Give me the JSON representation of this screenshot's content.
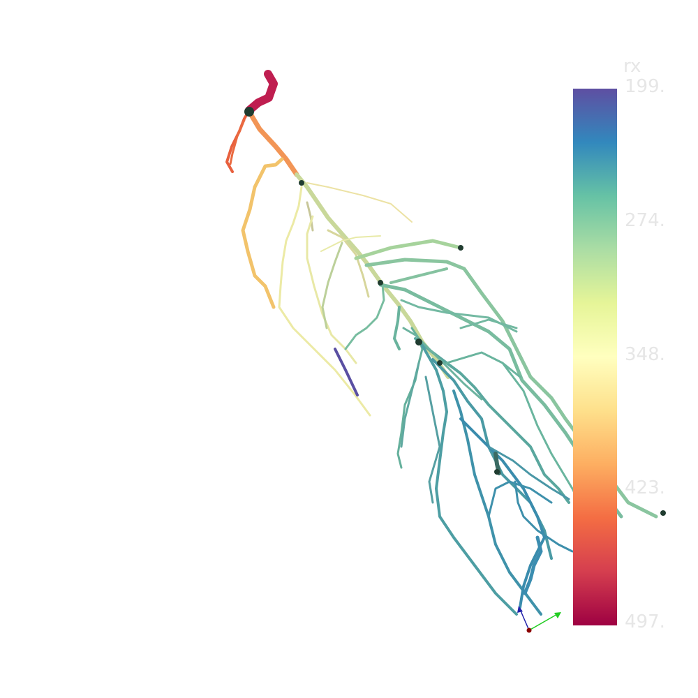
{
  "scene": {
    "colorbar": {
      "title": "rx",
      "ticks": [
        "199.",
        "274.",
        "348.",
        "423.",
        "497."
      ],
      "colors": [
        "#5e4fa2",
        "#3288bd",
        "#66c2a5",
        "#abdda4",
        "#e6f598",
        "#ffffbf",
        "#fee08b",
        "#fdae61",
        "#f46d43",
        "#d53e4f",
        "#9e0142"
      ]
    },
    "axes_triad": {
      "x_color": "#22cc22",
      "y_color": "#2222aa",
      "origin_color": "#8b0000"
    },
    "background": "#ffffff"
  }
}
